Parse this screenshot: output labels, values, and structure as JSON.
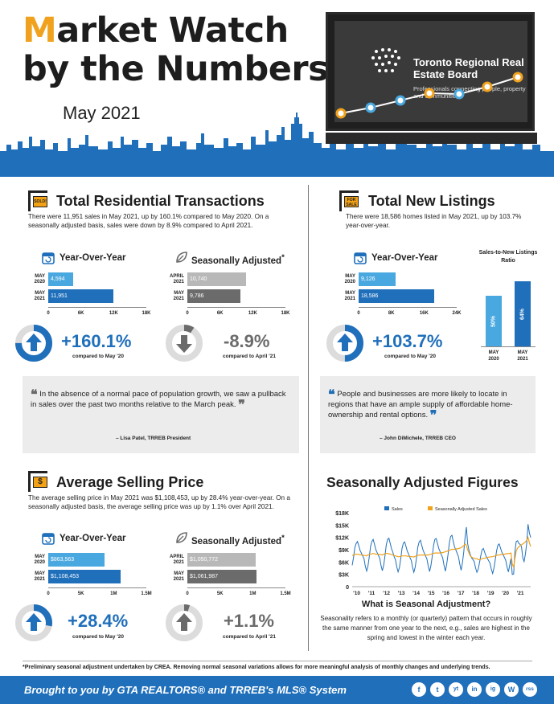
{
  "header": {
    "title_line1_m": "M",
    "title_line1_rest": "arket Watch",
    "title_line2": "by the Numbers",
    "month": "May 2021",
    "board_name": "Toronto Regional Real Estate Board",
    "board_tagline": "Professionals connecting people, property and communities."
  },
  "colors": {
    "accent": "#f0a21e",
    "primary_blue": "#1f6fbb",
    "light_blue": "#4aa8e0",
    "gray": "#6b6b6b",
    "light_gray": "#b8b8b8"
  },
  "transactions": {
    "title": "Total Residential Transactions",
    "sign_text": "SOLD!",
    "description": "There were 11,951 sales in May 2021, up by 160.1% compared to May 2020. On a seasonally adjusted basis, sales were down by 8.9% compared to April 2021.",
    "yoy": {
      "heading": "Year-Over-Year",
      "bars": [
        {
          "label_top": "MAY",
          "label_bottom": "2020",
          "value_text": "4,594",
          "value": 4594
        },
        {
          "label_top": "MAY",
          "label_bottom": "2021",
          "value_text": "11,951",
          "value": 11951
        }
      ],
      "ticks": [
        "0",
        "6K",
        "12K",
        "18K"
      ],
      "max": 18000,
      "pct": "+160.1%",
      "compare": "compared to May '20",
      "donut_fraction": 0.75
    },
    "sa": {
      "heading": "Seasonally Adjusted",
      "asterisk": "*",
      "bars": [
        {
          "label_top": "APRIL",
          "label_bottom": "2021",
          "value_text": "10,740",
          "value": 10740
        },
        {
          "label_top": "MAY",
          "label_bottom": "2021",
          "value_text": "9,786",
          "value": 9786
        }
      ],
      "ticks": [
        "0",
        "6K",
        "12K",
        "18K"
      ],
      "max": 18000,
      "pct": "-8.9%",
      "compare": "compared to April '21",
      "donut_fraction": 0.09
    },
    "quote": {
      "text": "In the absence of a normal pace of population growth, we saw a pullback in sales over the past two months relative to the March peak.",
      "by": "– Lisa Patel, TRREB President"
    }
  },
  "listings": {
    "title": "Total New Listings",
    "sign_text_top": "FOR",
    "sign_text_bottom": "SALE",
    "description": "There were 18,586 homes listed in May 2021, up by 103.7% year-over-year.",
    "yoy": {
      "heading": "Year-Over-Year",
      "bars": [
        {
          "label_top": "MAY",
          "label_bottom": "2020",
          "value_text": "9,126",
          "value": 9126
        },
        {
          "label_top": "MAY",
          "label_bottom": "2021",
          "value_text": "18,586",
          "value": 18586
        }
      ],
      "ticks": [
        "0",
        "8K",
        "16K",
        "24K"
      ],
      "max": 24000,
      "pct": "+103.7%",
      "compare": "compared to May '20",
      "donut_fraction": 0.5
    },
    "ratio": {
      "title": "Sales-to-New Listings Ratio",
      "bars": [
        {
          "label_top": "MAY",
          "label_bottom": "2020",
          "value_text": "50%",
          "value": 50
        },
        {
          "label_top": "MAY",
          "label_bottom": "2021",
          "value_text": "64%",
          "value": 64
        }
      ]
    },
    "quote": {
      "text": "People and businesses are more likely to locate in regions that have an ample supply of affordable home-ownership and rental options.",
      "by": "– John DiMichele, TRREB CEO"
    }
  },
  "price": {
    "title": "Average Selling Price",
    "sign_text": "$",
    "description": "The average selling price in May 2021 was $1,108,453, up by 28.4% year-over-year. On a seasonally adjusted basis, the average selling price was up by 1.1% over April 2021.",
    "yoy": {
      "heading": "Year-Over-Year",
      "bars": [
        {
          "label_top": "MAY",
          "label_bottom": "2020",
          "value_text": "$863,563",
          "value": 863563
        },
        {
          "label_top": "MAY",
          "label_bottom": "2021",
          "value_text": "$1,108,453",
          "value": 1108453
        }
      ],
      "ticks": [
        "0",
        "5K",
        "1M",
        "1.5M"
      ],
      "max": 1500000,
      "pct": "+28.4%",
      "compare": "compared to May '20",
      "donut_fraction": 0.28
    },
    "sa": {
      "heading": "Seasonally Adjusted",
      "asterisk": "*",
      "bars": [
        {
          "label_top": "APRIL",
          "label_bottom": "2021",
          "value_text": "$1,050,772",
          "value": 1050772
        },
        {
          "label_top": "MAY",
          "label_bottom": "2021",
          "value_text": "$1,061,987",
          "value": 1061987
        }
      ],
      "ticks": [
        "0",
        "5K",
        "1M",
        "1.5M"
      ],
      "max": 1500000,
      "pct": "+1.1%",
      "compare": "compared to April '21",
      "donut_fraction": 0.05
    }
  },
  "seasonal": {
    "title": "Seasonally Adjusted Figures",
    "what_title": "What is Seasonal Adjustment?",
    "what_desc": "Seasonality refers to a monthly (or quarterly) pattern that occurs in roughly the same manner from one year to the next, e.g., sales are highest in the spring and lowest in the winter each year."
  },
  "chart_data": {
    "type": "line",
    "title": "",
    "xlabel": "",
    "ylabel": "",
    "x_ticks": [
      "'10",
      "'11",
      "'12",
      "'13",
      "'14",
      "'15",
      "'16",
      "'17",
      "'18",
      "'19",
      "'20",
      "'21"
    ],
    "y_ticks": [
      "0",
      "$3K",
      "$6K",
      "$9K",
      "$12K",
      "$15K",
      "$18K"
    ],
    "ylim": [
      0,
      18000
    ],
    "legend_placement": "top",
    "grid": false,
    "series": [
      {
        "name": "Sales",
        "color": "#1f6fbb",
        "values": [
          5200,
          7000,
          9500,
          10500,
          11000,
          10000,
          8800,
          8200,
          7500,
          6800,
          5000,
          3800,
          5000,
          7200,
          9800,
          11000,
          11500,
          10300,
          9000,
          8300,
          7600,
          6900,
          5100,
          3900,
          5200,
          7500,
          10200,
          11500,
          11800,
          10500,
          9200,
          8400,
          7300,
          6500,
          4800,
          3600,
          4700,
          6800,
          9300,
          10600,
          10900,
          9800,
          8600,
          7900,
          7100,
          6400,
          4700,
          3500,
          4800,
          7000,
          9600,
          10900,
          11300,
          10100,
          8900,
          8100,
          7400,
          6700,
          4900,
          3700,
          5100,
          7400,
          10000,
          11500,
          11700,
          10500,
          9300,
          8500,
          7700,
          7000,
          5100,
          3800,
          5400,
          7800,
          10600,
          12200,
          12500,
          11000,
          9700,
          8900,
          8100,
          7300,
          5400,
          4000,
          5800,
          8500,
          12000,
          14500,
          10500,
          8800,
          7800,
          7000,
          6600,
          6100,
          4600,
          3500,
          4200,
          5800,
          7600,
          9000,
          9300,
          8300,
          7400,
          6900,
          6300,
          5700,
          4300,
          3200,
          4500,
          6500,
          8700,
          10100,
          10400,
          9400,
          8400,
          7800,
          7100,
          6400,
          4800,
          3600,
          5200,
          6800,
          3000,
          3100,
          8500,
          11000,
          11200,
          10500,
          10300,
          9700,
          7000,
          6100,
          8000,
          10600,
          15200,
          13100,
          11951
        ]
      },
      {
        "name": "Seasonally Adjusted Sales",
        "color": "#f0a21e",
        "values": [
          7600,
          7700,
          7800,
          7900,
          7900,
          7800,
          7800,
          7700,
          7700,
          7600,
          7600,
          7500,
          7700,
          7800,
          7900,
          8000,
          8100,
          8000,
          7900,
          7900,
          7900,
          7800,
          7800,
          7700,
          7900,
          8000,
          8100,
          8100,
          8000,
          7900,
          7800,
          7700,
          7600,
          7500,
          7400,
          7300,
          7300,
          7400,
          7500,
          7500,
          7500,
          7500,
          7400,
          7400,
          7400,
          7300,
          7300,
          7200,
          7400,
          7500,
          7600,
          7700,
          7700,
          7700,
          7700,
          7700,
          7700,
          7700,
          7700,
          7800,
          7900,
          8000,
          8100,
          8200,
          8200,
          8200,
          8200,
          8200,
          8300,
          8300,
          8400,
          8500,
          8600,
          8700,
          8800,
          9000,
          9100,
          9100,
          9100,
          9200,
          9200,
          9300,
          9400,
          9500,
          9700,
          10000,
          10400,
          10100,
          9000,
          8200,
          7500,
          7200,
          7000,
          6900,
          6800,
          6800,
          6600,
          6600,
          6700,
          6800,
          6900,
          6900,
          7000,
          7100,
          7200,
          7200,
          7300,
          7300,
          7400,
          7500,
          7600,
          7700,
          7700,
          7800,
          7800,
          7900,
          7900,
          8000,
          8000,
          8100,
          8100,
          8200,
          5500,
          4800,
          6800,
          8700,
          9400,
          9700,
          10000,
          10200,
          10400,
          10600,
          10900,
          11300,
          12000,
          10700,
          9786
        ]
      }
    ]
  },
  "footer": {
    "footnote": "*Preliminary seasonal adjustment undertaken by CREA. Removing normal seasonal variations allows for more meaningful analysis of monthly changes and underlying trends.",
    "tagline": "Brought to you by GTA REALTORS® and TRREB's MLS® System",
    "social": [
      "f",
      "t",
      "yt",
      "in",
      "ig",
      "W",
      "rss"
    ]
  }
}
